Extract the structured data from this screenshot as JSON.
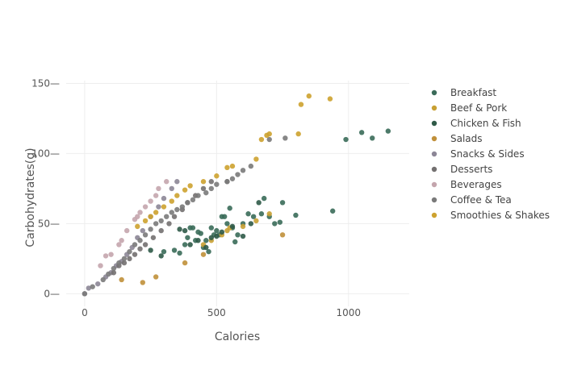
{
  "chart_data": {
    "type": "scatter",
    "title": "",
    "xlabel": "Calories",
    "ylabel": "Carbohydrates(g)",
    "xlim": [
      -70,
      1230
    ],
    "ylim": [
      -9,
      152
    ],
    "xticks": [
      0,
      500,
      1000
    ],
    "yticks": [
      0,
      50,
      100,
      150
    ],
    "grid": true,
    "legend_position": "right",
    "series": [
      {
        "name": "Breakfast",
        "color": "#3a6b59",
        "points": [
          [
            300,
            30
          ],
          [
            340,
            31
          ],
          [
            360,
            29
          ],
          [
            380,
            35
          ],
          [
            390,
            40
          ],
          [
            400,
            47
          ],
          [
            410,
            47
          ],
          [
            420,
            38
          ],
          [
            430,
            44
          ],
          [
            440,
            43
          ],
          [
            450,
            33
          ],
          [
            460,
            38
          ],
          [
            470,
            30
          ],
          [
            480,
            47
          ],
          [
            490,
            42
          ],
          [
            500,
            45
          ],
          [
            510,
            42
          ],
          [
            520,
            55
          ],
          [
            530,
            55
          ],
          [
            540,
            50
          ],
          [
            550,
            61
          ],
          [
            560,
            47
          ],
          [
            570,
            37
          ],
          [
            580,
            42
          ],
          [
            600,
            50
          ],
          [
            620,
            57
          ],
          [
            640,
            55
          ],
          [
            670,
            57
          ],
          [
            680,
            68
          ],
          [
            700,
            55
          ],
          [
            720,
            50
          ],
          [
            740,
            51
          ],
          [
            750,
            65
          ],
          [
            800,
            56
          ],
          [
            940,
            59
          ],
          [
            990,
            110
          ],
          [
            1050,
            115
          ],
          [
            1090,
            111
          ],
          [
            1150,
            116
          ]
        ]
      },
      {
        "name": "Beef & Pork",
        "color": "#c8a033",
        "points": [
          [
            450,
            35
          ],
          [
            480,
            38
          ],
          [
            520,
            42
          ],
          [
            540,
            45
          ],
          [
            550,
            47
          ],
          [
            600,
            48
          ],
          [
            650,
            52
          ],
          [
            700,
            57
          ]
        ]
      },
      {
        "name": "Chicken & Fish",
        "color": "#2f5a48",
        "points": [
          [
            250,
            31
          ],
          [
            290,
            27
          ],
          [
            360,
            46
          ],
          [
            380,
            45
          ],
          [
            400,
            35
          ],
          [
            430,
            38
          ],
          [
            460,
            33
          ],
          [
            480,
            40
          ],
          [
            500,
            41
          ],
          [
            520,
            44
          ],
          [
            560,
            48
          ],
          [
            600,
            41
          ],
          [
            630,
            50
          ],
          [
            660,
            65
          ]
        ]
      },
      {
        "name": "Salads",
        "color": "#c0903a",
        "points": [
          [
            140,
            10
          ],
          [
            220,
            8
          ],
          [
            270,
            12
          ],
          [
            380,
            22
          ],
          [
            450,
            28
          ],
          [
            750,
            42
          ]
        ]
      },
      {
        "name": "Snacks & Sides",
        "color": "#8c8696",
        "points": [
          [
            0,
            0
          ],
          [
            15,
            4
          ],
          [
            50,
            7
          ],
          [
            80,
            12
          ],
          [
            100,
            15
          ],
          [
            120,
            20
          ],
          [
            140,
            23
          ],
          [
            160,
            28
          ],
          [
            180,
            33
          ],
          [
            200,
            40
          ],
          [
            220,
            45
          ],
          [
            250,
            55
          ],
          [
            280,
            62
          ],
          [
            300,
            68
          ],
          [
            330,
            75
          ],
          [
            350,
            80
          ]
        ]
      },
      {
        "name": "Desserts",
        "color": "#737070",
        "points": [
          [
            110,
            15
          ],
          [
            130,
            20
          ],
          [
            150,
            22
          ],
          [
            170,
            25
          ],
          [
            190,
            28
          ],
          [
            210,
            32
          ],
          [
            230,
            35
          ],
          [
            260,
            40
          ],
          [
            290,
            45
          ],
          [
            320,
            50
          ],
          [
            340,
            55
          ],
          [
            370,
            60
          ],
          [
            390,
            65
          ],
          [
            420,
            70
          ],
          [
            450,
            75
          ],
          [
            480,
            80
          ],
          [
            540,
            80
          ]
        ]
      },
      {
        "name": "Beverages",
        "color": "#c4a5ad",
        "points": [
          [
            60,
            20
          ],
          [
            80,
            27
          ],
          [
            100,
            28
          ],
          [
            130,
            35
          ],
          [
            140,
            38
          ],
          [
            160,
            45
          ],
          [
            190,
            53
          ],
          [
            200,
            55
          ],
          [
            210,
            58
          ],
          [
            230,
            62
          ],
          [
            250,
            66
          ],
          [
            270,
            70
          ],
          [
            280,
            75
          ],
          [
            310,
            80
          ]
        ]
      },
      {
        "name": "Coffee & Tea",
        "color": "#7a7a7a",
        "points": [
          [
            0,
            0
          ],
          [
            30,
            5
          ],
          [
            70,
            10
          ],
          [
            90,
            14
          ],
          [
            110,
            18
          ],
          [
            130,
            22
          ],
          [
            150,
            25
          ],
          [
            170,
            30
          ],
          [
            190,
            35
          ],
          [
            210,
            38
          ],
          [
            230,
            42
          ],
          [
            250,
            46
          ],
          [
            270,
            50
          ],
          [
            290,
            52
          ],
          [
            310,
            55
          ],
          [
            330,
            58
          ],
          [
            350,
            60
          ],
          [
            370,
            62
          ],
          [
            390,
            65
          ],
          [
            410,
            67
          ],
          [
            430,
            70
          ],
          [
            460,
            72
          ],
          [
            480,
            75
          ],
          [
            500,
            78
          ],
          [
            540,
            80
          ],
          [
            560,
            82
          ],
          [
            580,
            85
          ],
          [
            600,
            88
          ],
          [
            630,
            91
          ],
          [
            700,
            110
          ],
          [
            760,
            111
          ]
        ]
      },
      {
        "name": "Smoothies & Shakes",
        "color": "#cda22f",
        "points": [
          [
            200,
            48
          ],
          [
            230,
            52
          ],
          [
            250,
            55
          ],
          [
            270,
            58
          ],
          [
            300,
            62
          ],
          [
            330,
            66
          ],
          [
            350,
            70
          ],
          [
            380,
            74
          ],
          [
            400,
            77
          ],
          [
            450,
            80
          ],
          [
            500,
            84
          ],
          [
            540,
            90
          ],
          [
            560,
            91
          ],
          [
            650,
            96
          ],
          [
            670,
            110
          ],
          [
            690,
            113
          ],
          [
            700,
            114
          ],
          [
            810,
            114
          ],
          [
            850,
            141
          ],
          [
            820,
            135
          ],
          [
            930,
            139
          ]
        ]
      }
    ]
  }
}
